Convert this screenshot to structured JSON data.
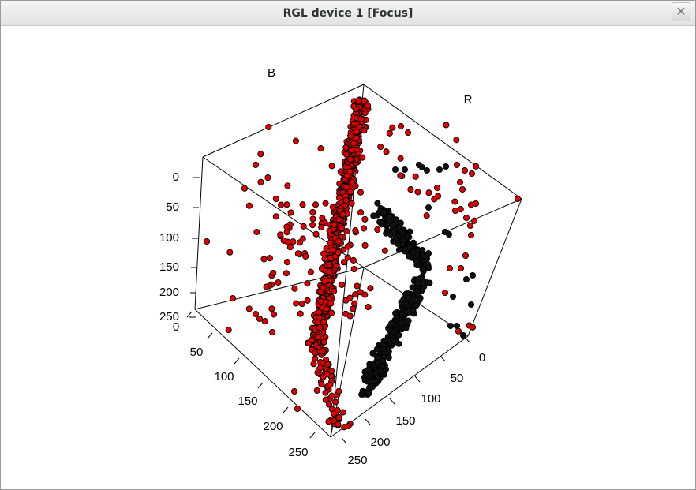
{
  "window": {
    "title": "RGL device 1 [Focus]",
    "close_label": "✕"
  },
  "chart_data": {
    "type": "scatter",
    "title": "",
    "background": "#ffffff",
    "axes": {
      "B": {
        "label": "B",
        "range": [
          0,
          255
        ],
        "ticks": [
          "0",
          "50",
          "100",
          "150",
          "200",
          "250"
        ]
      },
      "R": {
        "label": "R",
        "range": [
          0,
          255
        ],
        "ticks": [
          "0",
          "50",
          "100",
          "150",
          "200",
          "250"
        ]
      },
      "G": {
        "label": "",
        "range": [
          0,
          255
        ],
        "ticks": [
          "0",
          "50",
          "100",
          "150",
          "200",
          "250"
        ]
      }
    },
    "bounding_box": true,
    "series": [
      {
        "color": "#e00000"
      },
      {
        "color": "#111111"
      }
    ]
  }
}
